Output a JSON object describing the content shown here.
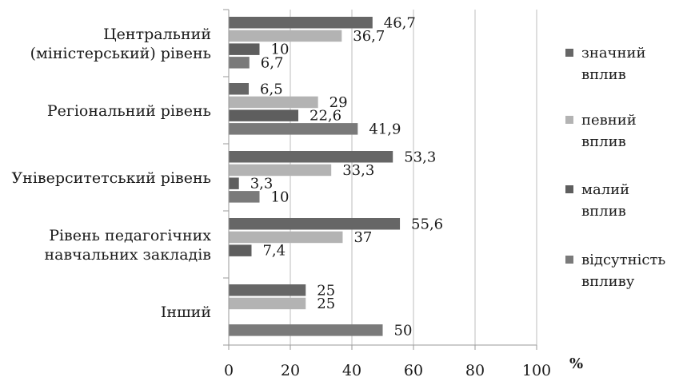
{
  "chart_data": {
    "type": "bar",
    "orientation": "horizontal",
    "unit": "%",
    "xlim": [
      0,
      100
    ],
    "x_ticks": [
      0,
      20,
      40,
      60,
      80,
      100
    ],
    "x_tick_labels": [
      "0",
      "20",
      "40",
      "60",
      "80",
      "100"
    ],
    "grid": true,
    "legend_position": "right",
    "categories": [
      [
        "Центральний",
        "(міністерський) рівень"
      ],
      [
        "Регіональний рівень"
      ],
      [
        "Університетський рівень"
      ],
      [
        "Рівень педагогічних",
        "навчальних закладів"
      ],
      [
        "Інший"
      ]
    ],
    "series": [
      {
        "name": [
          "значний",
          "вплив"
        ],
        "color": "#666666",
        "values": [
          46.7,
          6.5,
          53.3,
          55.6,
          25
        ],
        "labels": [
          "46,7",
          "6,5",
          "53,3",
          "55,6",
          "25"
        ]
      },
      {
        "name": [
          "певний",
          "вплив"
        ],
        "color": "#b3b3b3",
        "values": [
          36.7,
          29,
          33.3,
          37,
          25
        ],
        "labels": [
          "36,7",
          "29",
          "33,3",
          "37",
          "25"
        ]
      },
      {
        "name": [
          "малий",
          "вплив"
        ],
        "color": "#5e5e5e",
        "values": [
          10,
          22.6,
          3.3,
          7.4,
          null
        ],
        "labels": [
          "10",
          "22,6",
          "3,3",
          "7,4",
          ""
        ]
      },
      {
        "name": [
          "відсутність",
          "впливу"
        ],
        "color": "#7a7a7a",
        "values": [
          6.7,
          41.9,
          10,
          null,
          50
        ],
        "labels": [
          "6,7",
          "41,9",
          "10",
          "",
          "50"
        ]
      }
    ]
  }
}
